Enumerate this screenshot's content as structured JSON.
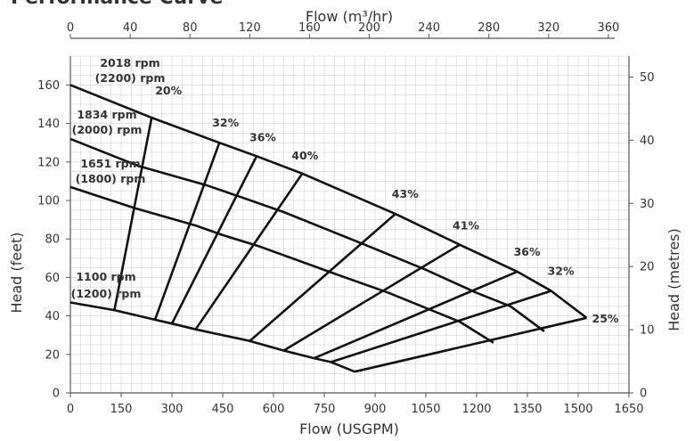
{
  "chart_data": {
    "type": "line",
    "title": "Performance Curve",
    "xlabel_bottom": "Flow (USGPM)",
    "xlabel_top": "Flow (m³/hr)",
    "ylabel_left": "Head (feet)",
    "ylabel_right": "Head (metres)",
    "xlim": [
      0,
      1650
    ],
    "ylim": [
      0,
      175
    ],
    "x_ticks": [
      0,
      150,
      300,
      450,
      600,
      750,
      900,
      1050,
      1200,
      1350,
      1500,
      1650
    ],
    "y_ticks": [
      0,
      20,
      40,
      60,
      80,
      100,
      120,
      140,
      160
    ],
    "top_ticks": [
      0,
      40,
      80,
      120,
      160,
      200,
      240,
      280,
      320,
      360
    ],
    "right_ticks": [
      0,
      10,
      20,
      30,
      40,
      50
    ],
    "grid": true,
    "colors": {
      "line": "#111111",
      "grid": "#d0d0d0",
      "text": "#333333"
    },
    "series": [
      {
        "name": "2018 rpm (2200) rpm",
        "x": [
          0,
          240,
          440,
          550,
          685,
          960,
          1150,
          1320,
          1420,
          1525
        ],
        "y": [
          160,
          143,
          130,
          123,
          114,
          93,
          77,
          63,
          53,
          39
        ]
      },
      {
        "name": "1834 rpm (2000) rpm",
        "x": [
          0,
          200,
          400,
          500,
          630,
          870,
          1050,
          1200,
          1300,
          1400
        ],
        "y": [
          132,
          118,
          108,
          102,
          94,
          77,
          64,
          52,
          45,
          32
        ]
      },
      {
        "name": "1651 rpm (1800) rpm",
        "x": [
          0,
          190,
          370,
          450,
          560,
          780,
          940,
          1080,
          1150,
          1250
        ],
        "y": [
          107,
          96,
          87,
          82,
          76,
          62,
          52,
          42,
          37,
          26
        ]
      },
      {
        "name": "1100 rpm (1200) rpm",
        "x": [
          0,
          130,
          250,
          300,
          370,
          530,
          630,
          720,
          770,
          840
        ],
        "y": [
          47,
          43,
          38,
          36,
          33,
          27,
          22,
          18,
          16,
          11
        ]
      }
    ],
    "efficiency_lines": [
      {
        "label": "20%",
        "x": [
          240,
          130
        ],
        "y": [
          143,
          43
        ]
      },
      {
        "label": "32%",
        "x": [
          440,
          250
        ],
        "y": [
          130,
          38
        ]
      },
      {
        "label": "36%",
        "x": [
          550,
          300
        ],
        "y": [
          123,
          36
        ]
      },
      {
        "label": "40%",
        "x": [
          685,
          370
        ],
        "y": [
          114,
          33
        ]
      },
      {
        "label": "43%",
        "x": [
          960,
          530
        ],
        "y": [
          93,
          27
        ]
      },
      {
        "label": "41%",
        "x": [
          1150,
          630
        ],
        "y": [
          77,
          22
        ]
      },
      {
        "label": "36%",
        "x": [
          1320,
          720
        ],
        "y": [
          63,
          18
        ]
      },
      {
        "label": "32%",
        "x": [
          1420,
          770
        ],
        "y": [
          53,
          16
        ]
      },
      {
        "label": "25%",
        "x": [
          1525,
          840
        ],
        "y": [
          39,
          11
        ]
      }
    ],
    "speed_labels": [
      {
        "line1": "2018 rpm",
        "line2": "(2200) rpm"
      },
      {
        "line1": "1834 rpm",
        "line2": "(2000) rpm"
      },
      {
        "line1": "1651 rpm",
        "line2": "(1800) rpm"
      },
      {
        "line1": "1100 rpm",
        "line2": "(1200) rpm"
      }
    ]
  }
}
